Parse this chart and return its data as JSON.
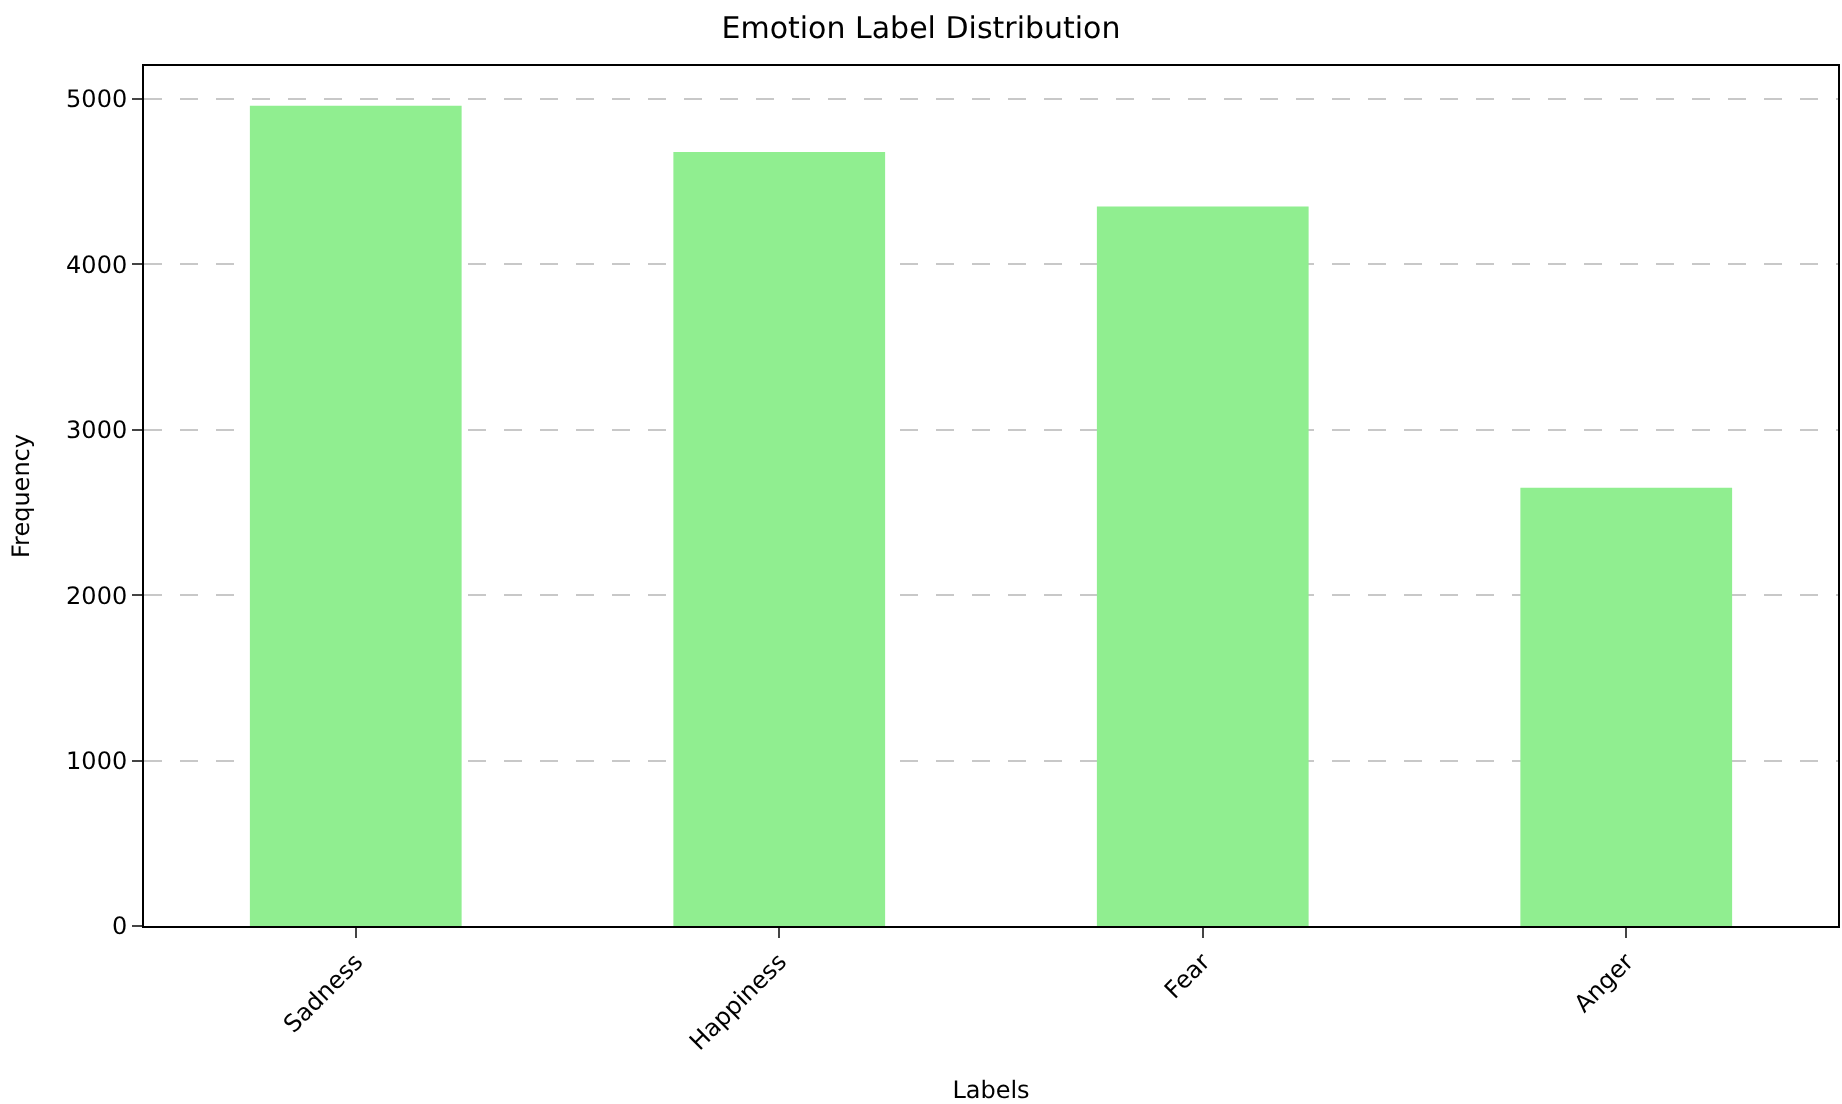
{
  "chart_data": {
    "type": "bar",
    "title": "Emotion Label Distribution",
    "xlabel": "Labels",
    "ylabel": "Frequency",
    "categories": [
      "Sadness",
      "Happiness",
      "Fear",
      "Anger"
    ],
    "values": [
      4960,
      4680,
      4350,
      2650
    ],
    "color": "#90ee90",
    "ylim": [
      0,
      5200
    ],
    "yticks": [
      0,
      1000,
      2000,
      3000,
      4000,
      5000
    ],
    "grid": "y"
  }
}
